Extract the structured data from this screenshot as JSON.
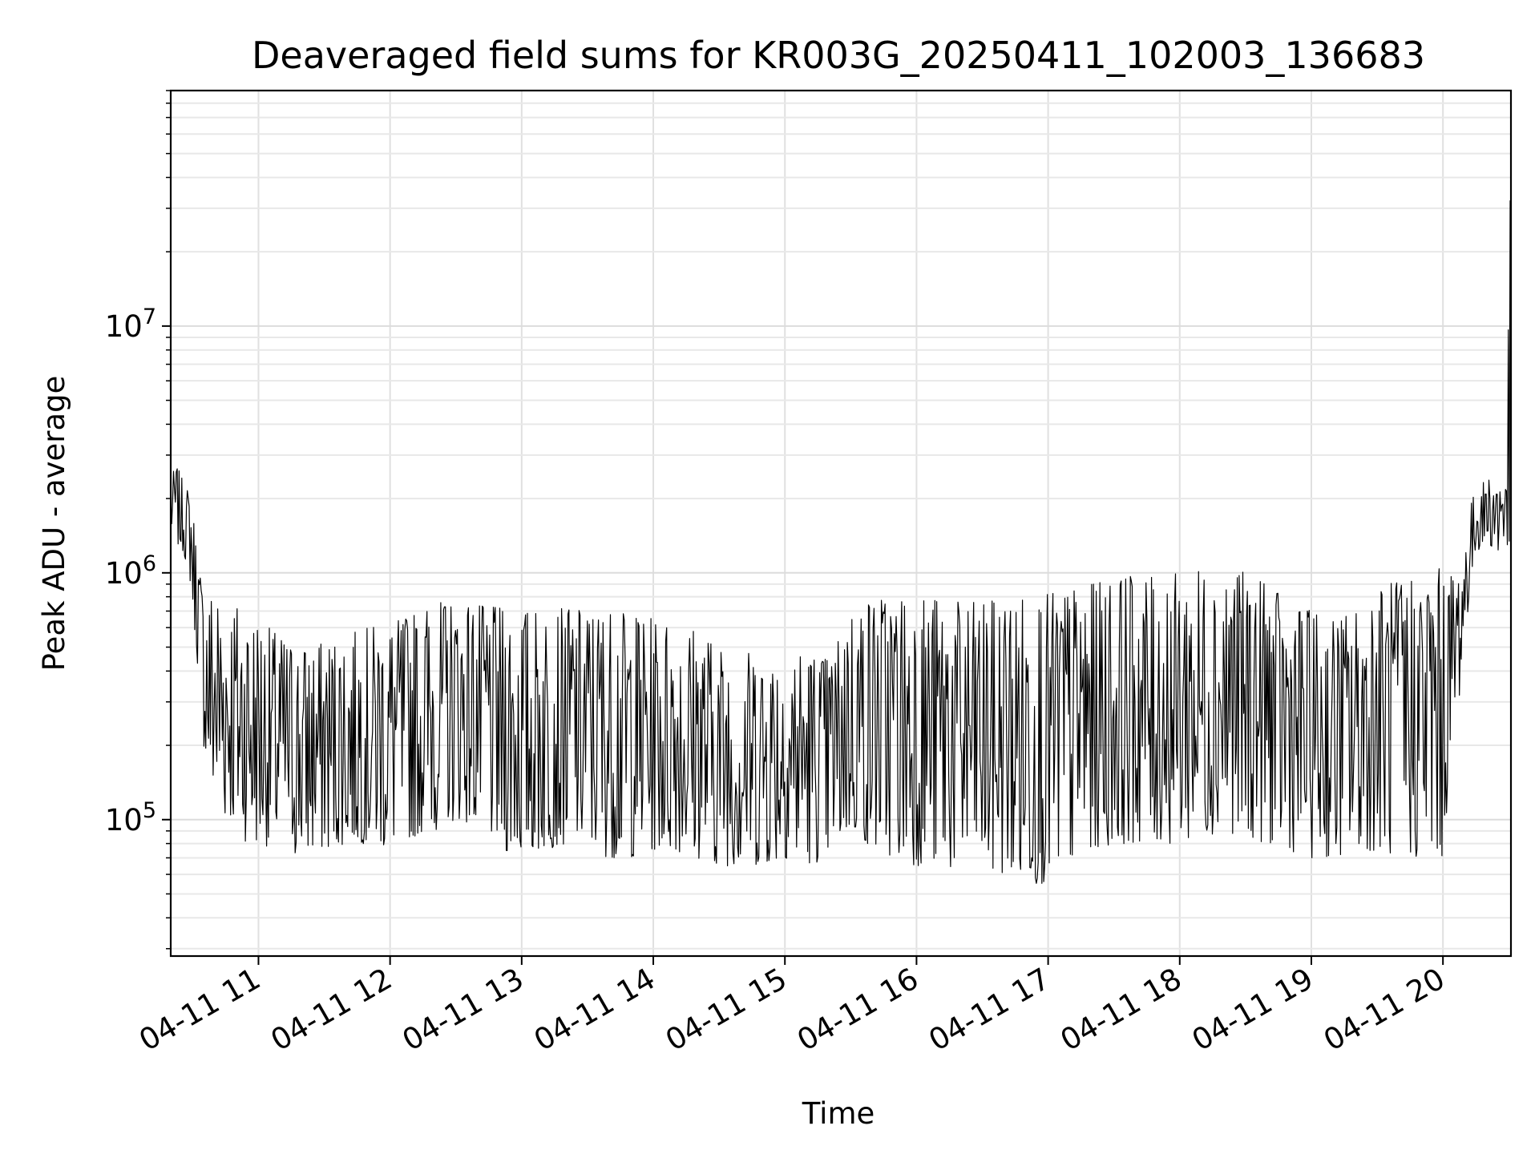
{
  "chart_data": {
    "type": "line",
    "title": "Deaveraged field sums for KR003G_20250411_102003_136683",
    "xlabel": "Time",
    "ylabel": "Peak ADU - average",
    "x_scale": "time",
    "x_range": [
      "04-11 10:20",
      "04-11 20:31"
    ],
    "y_scale": "log",
    "ylim": [
      28000,
      90000000
    ],
    "grid": true,
    "line_color": "#000000",
    "x_ticks": [
      {
        "value": "04-11 11:00",
        "label": "04-11 11"
      },
      {
        "value": "04-11 12:00",
        "label": "04-11 12"
      },
      {
        "value": "04-11 13:00",
        "label": "04-11 13"
      },
      {
        "value": "04-11 14:00",
        "label": "04-11 14"
      },
      {
        "value": "04-11 15:00",
        "label": "04-11 15"
      },
      {
        "value": "04-11 16:00",
        "label": "04-11 16"
      },
      {
        "value": "04-11 17:00",
        "label": "04-11 17"
      },
      {
        "value": "04-11 18:00",
        "label": "04-11 18"
      },
      {
        "value": "04-11 19:00",
        "label": "04-11 19"
      },
      {
        "value": "04-11 20:00",
        "label": "04-11 20"
      }
    ],
    "y_ticks": [
      {
        "value": 100000,
        "base": "10",
        "exp": "5"
      },
      {
        "value": 1000000,
        "base": "10",
        "exp": "6"
      },
      {
        "value": 10000000,
        "base": "10",
        "exp": "7"
      }
    ],
    "series": [
      {
        "x": [
          "04-11 10:20",
          "04-11 10:23",
          "04-11 10:26",
          "04-11 10:29",
          "04-11 10:32",
          "04-11 10:35",
          "04-11 10:38",
          "04-11 10:41",
          "04-11 10:44",
          "04-11 10:47",
          "04-11 10:50",
          "04-11 10:55",
          "04-11 11:00",
          "04-11 11:10",
          "04-11 11:20",
          "04-11 11:30",
          "04-11 11:40",
          "04-11 11:50",
          "04-11 12:00",
          "04-11 12:10",
          "04-11 12:20",
          "04-11 12:30",
          "04-11 12:40",
          "04-11 12:50",
          "04-11 13:00",
          "04-11 13:10",
          "04-11 13:20",
          "04-11 13:30",
          "04-11 13:40",
          "04-11 13:50",
          "04-11 14:00",
          "04-11 14:10",
          "04-11 14:20",
          "04-11 14:30",
          "04-11 14:40",
          "04-11 14:50",
          "04-11 15:00",
          "04-11 15:10",
          "04-11 15:20",
          "04-11 15:30",
          "04-11 15:40",
          "04-11 15:50",
          "04-11 16:00",
          "04-11 16:10",
          "04-11 16:20",
          "04-11 16:30",
          "04-11 16:40",
          "04-11 16:50",
          "04-11 17:00",
          "04-11 17:10",
          "04-11 17:20",
          "04-11 17:30",
          "04-11 17:40",
          "04-11 17:50",
          "04-11 18:00",
          "04-11 18:10",
          "04-11 18:20",
          "04-11 18:30",
          "04-11 18:40",
          "04-11 18:50",
          "04-11 19:00",
          "04-11 19:10",
          "04-11 19:20",
          "04-11 19:30",
          "04-11 19:40",
          "04-11 19:50",
          "04-11 20:00",
          "04-11 20:03",
          "04-11 20:06",
          "04-11 20:09",
          "04-11 20:12",
          "04-11 20:15",
          "04-11 20:18",
          "04-11 20:21",
          "04-11 20:24",
          "04-11 20:27",
          "04-11 20:29",
          "04-11 20:30",
          "04-11 20:31"
        ],
        "y_low": [
          1400000,
          1300000,
          1200000,
          900000,
          450000,
          200000,
          130000,
          110000,
          100000,
          100000,
          90000,
          80000,
          80000,
          75000,
          70000,
          75000,
          80000,
          80000,
          75000,
          85000,
          90000,
          100000,
          95000,
          75000,
          70000,
          75000,
          80000,
          75000,
          70000,
          70000,
          75000,
          75000,
          70000,
          65000,
          65000,
          65000,
          70000,
          65000,
          70000,
          90000,
          75000,
          70000,
          65000,
          65000,
          60000,
          60000,
          60000,
          55000,
          55000,
          65000,
          75000,
          80000,
          80000,
          80000,
          80000,
          85000,
          90000,
          85000,
          80000,
          75000,
          70000,
          70000,
          75000,
          75000,
          70000,
          70000,
          70000,
          150000,
          250000,
          400000,
          800000,
          1200000,
          1300000,
          1300000,
          1200000,
          1100000,
          1100000,
          1100000,
          1100000
        ],
        "y_high": [
          2500000,
          2700000,
          2300000,
          2100000,
          1300000,
          800000,
          850000,
          850000,
          800000,
          780000,
          750000,
          700000,
          650000,
          550000,
          500000,
          520000,
          560000,
          600000,
          620000,
          680000,
          760000,
          760000,
          740000,
          720000,
          700000,
          700000,
          720000,
          700000,
          700000,
          680000,
          650000,
          620000,
          600000,
          500000,
          480000,
          480000,
          500000,
          480000,
          450000,
          700000,
          800000,
          820000,
          820000,
          780000,
          760000,
          760000,
          780000,
          800000,
          820000,
          850000,
          900000,
          950000,
          980000,
          950000,
          1000000,
          1050000,
          1050000,
          1000000,
          900000,
          750000,
          700000,
          650000,
          700000,
          850000,
          950000,
          1000000,
          1050000,
          1000000,
          1000000,
          1200000,
          1800000,
          2200000,
          2300000,
          2500000,
          2500000,
          2600000,
          5000000,
          12000000,
          60000000
        ]
      }
    ]
  }
}
